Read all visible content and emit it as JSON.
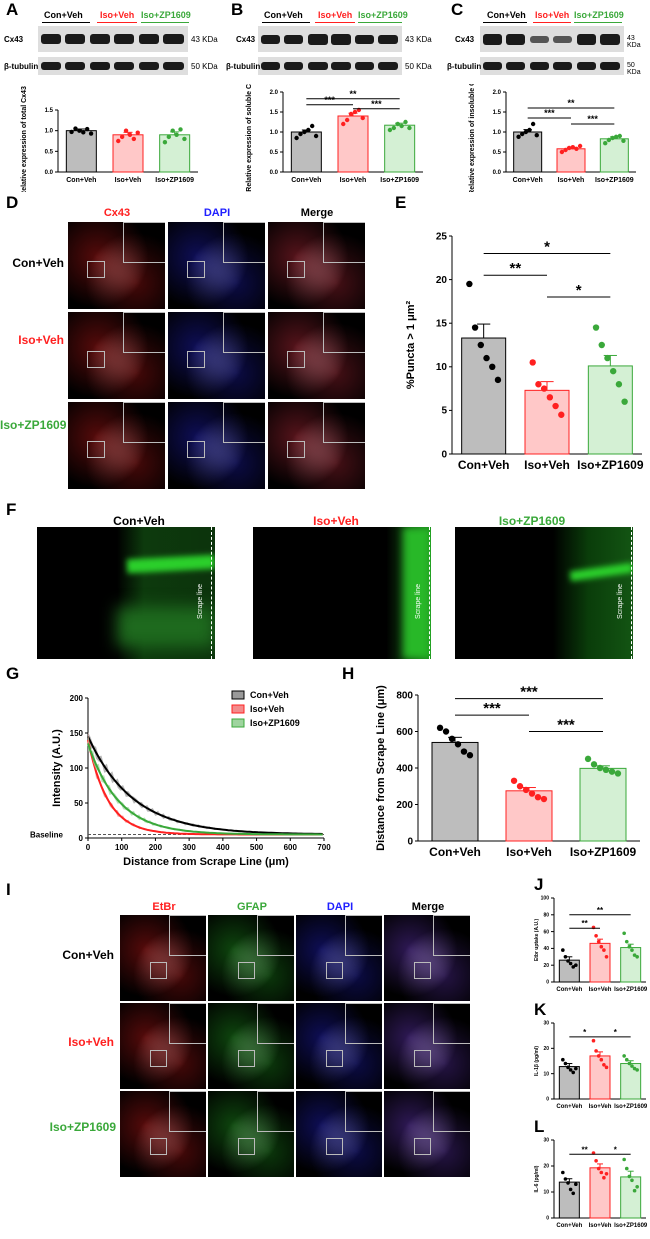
{
  "colors": {
    "con": "#000000",
    "iso": "#ff2020",
    "zp": "#3aa83a",
    "dapi": "#2020ff"
  },
  "panels": {
    "A": "A",
    "B": "B",
    "C": "C",
    "D": "D",
    "E": "E",
    "F": "F",
    "G": "G",
    "H": "H",
    "I": "I",
    "J": "J",
    "K": "K",
    "L": "L"
  },
  "groups": {
    "con": "Con+Veh",
    "iso": "Iso+Veh",
    "zp": "Iso+ZP1609"
  },
  "blot": {
    "cx43": "Cx43",
    "tubulin": "β-tubulin",
    "kda43": "43 KDa",
    "kda50": "50 KDa"
  },
  "stains": {
    "cx43": "Cx43",
    "dapi": "DAPI",
    "merge": "Merge",
    "etbr": "EtBr",
    "gfap": "GFAP"
  },
  "scrape_line": "Scrape line",
  "chart_data": [
    {
      "id": "A",
      "type": "bar",
      "categories": [
        "Con+Veh",
        "Iso+Veh",
        "Iso+ZP1609"
      ],
      "values": [
        1.0,
        0.9,
        0.9
      ],
      "errors": [
        0.04,
        0.06,
        0.07
      ],
      "ylabel": "Relative expression of total Cx43",
      "ylim": [
        0,
        1.5
      ],
      "yticks": [
        0.0,
        0.5,
        1.0,
        1.5
      ],
      "ytick_labels": [
        "0.0",
        "0.5",
        "1.0",
        "1.5"
      ],
      "points": [
        [
          0.97,
          1.05,
          1.0,
          0.96,
          1.04,
          0.93
        ],
        [
          0.75,
          0.85,
          1.0,
          0.9,
          0.8,
          0.95
        ],
        [
          0.72,
          0.85,
          1.0,
          0.9,
          1.03,
          0.8
        ]
      ],
      "sig": []
    },
    {
      "id": "B",
      "type": "bar",
      "categories": [
        "Con+Veh",
        "Iso+Veh",
        "Iso+ZP1609"
      ],
      "values": [
        1.0,
        1.4,
        1.17
      ],
      "errors": [
        0.05,
        0.07,
        0.05
      ],
      "ylabel": "Relative expression of soluble Cx43",
      "ylim": [
        0,
        2.0
      ],
      "yticks": [
        0.0,
        0.5,
        1.0,
        1.5,
        2.0
      ],
      "ytick_labels": [
        "0.0",
        "0.5",
        "1.0",
        "1.5",
        "2.0"
      ],
      "points": [
        [
          0.85,
          0.95,
          1.0,
          1.05,
          1.15,
          0.9
        ],
        [
          1.2,
          1.3,
          1.45,
          1.5,
          1.55,
          1.35
        ],
        [
          1.05,
          1.1,
          1.2,
          1.15,
          1.25,
          1.1
        ]
      ],
      "sig": [
        {
          "from": 0,
          "to": 1,
          "label": "***",
          "y": 1.68
        },
        {
          "from": 0,
          "to": 2,
          "label": "**",
          "y": 1.83
        },
        {
          "from": 1,
          "to": 2,
          "label": "***",
          "y": 1.58
        }
      ]
    },
    {
      "id": "C",
      "type": "bar",
      "categories": [
        "Con+Veh",
        "Iso+Veh",
        "Iso+ZP1609"
      ],
      "values": [
        1.0,
        0.58,
        0.83
      ],
      "errors": [
        0.06,
        0.04,
        0.05
      ],
      "ylabel": "Relative expression of insoluble Cx43",
      "ylim": [
        0,
        2.0
      ],
      "yticks": [
        0.0,
        0.5,
        1.0,
        1.5,
        2.0
      ],
      "ytick_labels": [
        "0.0",
        "0.5",
        "1.0",
        "1.5",
        "2.0"
      ],
      "points": [
        [
          0.88,
          0.95,
          1.0,
          1.05,
          1.2,
          0.92
        ],
        [
          0.5,
          0.55,
          0.6,
          0.62,
          0.58,
          0.65
        ],
        [
          0.72,
          0.8,
          0.85,
          0.88,
          0.9,
          0.78
        ]
      ],
      "sig": [
        {
          "from": 0,
          "to": 1,
          "label": "***",
          "y": 1.35
        },
        {
          "from": 0,
          "to": 2,
          "label": "**",
          "y": 1.6
        },
        {
          "from": 1,
          "to": 2,
          "label": "***",
          "y": 1.2
        }
      ]
    },
    {
      "id": "E",
      "type": "bar",
      "categories": [
        "Con+Veh",
        "Iso+Veh",
        "Iso+ZP1609"
      ],
      "values": [
        13.3,
        7.3,
        10.1
      ],
      "errors": [
        1.6,
        1.0,
        1.2
      ],
      "ylabel": "%Puncta > 1 μm²",
      "ylim": [
        0,
        25
      ],
      "yticks": [
        0,
        5,
        10,
        15,
        20,
        25
      ],
      "ytick_labels": [
        "0",
        "5",
        "10",
        "15",
        "20",
        "25"
      ],
      "points": [
        [
          19.5,
          14.5,
          12.5,
          11.0,
          10.0,
          8.5
        ],
        [
          10.5,
          8.0,
          7.5,
          6.5,
          5.5,
          4.5
        ],
        [
          14.5,
          12.5,
          11.0,
          9.5,
          8.0,
          6.0
        ]
      ],
      "sig": [
        {
          "from": 0,
          "to": 1,
          "label": "**",
          "y": 20.5
        },
        {
          "from": 0,
          "to": 2,
          "label": "*",
          "y": 23.0
        },
        {
          "from": 1,
          "to": 2,
          "label": "*",
          "y": 18.0
        }
      ]
    },
    {
      "id": "G",
      "type": "line",
      "xlabel": "Distance from Scrape Line (μm)",
      "ylabel": "Intensity (A.U.)",
      "xlim": [
        0,
        700
      ],
      "ylim": [
        0,
        200
      ],
      "xticks": [
        0,
        100,
        200,
        300,
        400,
        500,
        600,
        700
      ],
      "yticks": [
        0,
        50,
        100,
        150,
        200
      ],
      "baseline_label": "Baseline",
      "baseline": 5,
      "series": [
        {
          "name": "Con+Veh",
          "color": "#000000",
          "shade": "#9a9a9a",
          "a": 140,
          "k": 0.0075
        },
        {
          "name": "Iso+Veh",
          "color": "#ff2020",
          "shade": "#f28c8c",
          "a": 135,
          "k": 0.017
        },
        {
          "name": "Iso+ZP1609",
          "color": "#3aa83a",
          "shade": "#9ed49e",
          "a": 130,
          "k": 0.011
        }
      ]
    },
    {
      "id": "H",
      "type": "bar",
      "categories": [
        "Con+Veh",
        "Iso+Veh",
        "Iso+ZP1609"
      ],
      "values": [
        540,
        275,
        398
      ],
      "errors": [
        28,
        18,
        14
      ],
      "ylabel": "Distance from Scrape Line (μm)",
      "ylim": [
        0,
        800
      ],
      "yticks": [
        0,
        200,
        400,
        600,
        800
      ],
      "ytick_labels": [
        "0",
        "200",
        "400",
        "600",
        "800"
      ],
      "points": [
        [
          620,
          600,
          560,
          530,
          490,
          470
        ],
        [
          330,
          300,
          280,
          260,
          240,
          230
        ],
        [
          450,
          420,
          400,
          390,
          380,
          370
        ]
      ],
      "sig": [
        {
          "from": 0,
          "to": 1,
          "label": "***",
          "y": 690
        },
        {
          "from": 0,
          "to": 2,
          "label": "***",
          "y": 780
        },
        {
          "from": 1,
          "to": 2,
          "label": "***",
          "y": 600
        }
      ]
    },
    {
      "id": "J",
      "type": "bar",
      "categories": [
        "Con+Veh",
        "Iso+Veh",
        "Iso+ZP1609"
      ],
      "values": [
        26,
        46,
        41
      ],
      "errors": [
        4,
        5,
        4
      ],
      "ylabel": "Etbr uptake (A.U.)",
      "ylim": [
        0,
        100
      ],
      "yticks": [
        0,
        20,
        40,
        60,
        80,
        100
      ],
      "ytick_labels": [
        "0",
        "20",
        "40",
        "60",
        "80",
        "100"
      ],
      "points": [
        [
          38,
          30,
          25,
          22,
          18,
          20
        ],
        [
          65,
          55,
          48,
          42,
          38,
          30
        ],
        [
          58,
          48,
          42,
          38,
          32,
          30
        ]
      ],
      "sig": [
        {
          "from": 0,
          "to": 1,
          "label": "**",
          "y": 64
        },
        {
          "from": 0,
          "to": 2,
          "label": "**",
          "y": 80
        }
      ]
    },
    {
      "id": "K",
      "type": "bar",
      "categories": [
        "Con+Veh",
        "Iso+Veh",
        "Iso+ZP1609"
      ],
      "values": [
        12.8,
        17.0,
        14.0
      ],
      "errors": [
        1.2,
        1.6,
        1.1
      ],
      "ylabel": "IL-1β (pg/ml)",
      "ylim": [
        0,
        30
      ],
      "yticks": [
        0,
        10,
        20,
        30
      ],
      "ytick_labels": [
        "0",
        "10",
        "20",
        "30"
      ],
      "points": [
        [
          15.5,
          14.0,
          12.5,
          11.5,
          10.5,
          12.0
        ],
        [
          23.0,
          19.0,
          17.0,
          15.5,
          13.5,
          12.5
        ],
        [
          17.0,
          15.5,
          14.0,
          13.0,
          12.0,
          11.5
        ]
      ],
      "sig": [
        {
          "from": 0,
          "to": 1,
          "label": "*",
          "y": 24.5
        },
        {
          "from": 1,
          "to": 2,
          "label": "*",
          "y": 24.5
        }
      ]
    },
    {
      "id": "L",
      "type": "bar",
      "categories": [
        "Con+Veh",
        "Iso+Veh",
        "Iso+ZP1609"
      ],
      "values": [
        13.8,
        19.3,
        15.8
      ],
      "errors": [
        1.3,
        1.5,
        2.2
      ],
      "ylabel": "IL-6 (pg/ml)",
      "ylim": [
        0,
        30
      ],
      "yticks": [
        0,
        10,
        20,
        30
      ],
      "ytick_labels": [
        "0",
        "10",
        "20",
        "30"
      ],
      "points": [
        [
          17.5,
          15.0,
          13.5,
          11.0,
          9.5,
          13.0
        ],
        [
          25.0,
          22.0,
          19.0,
          17.5,
          15.5,
          17.0
        ],
        [
          22.5,
          19.0,
          16.0,
          14.5,
          10.5,
          12.0
        ]
      ],
      "sig": [
        {
          "from": 0,
          "to": 1,
          "label": "**",
          "y": 24.5
        },
        {
          "from": 1,
          "to": 2,
          "label": "*",
          "y": 24.5
        }
      ]
    }
  ]
}
